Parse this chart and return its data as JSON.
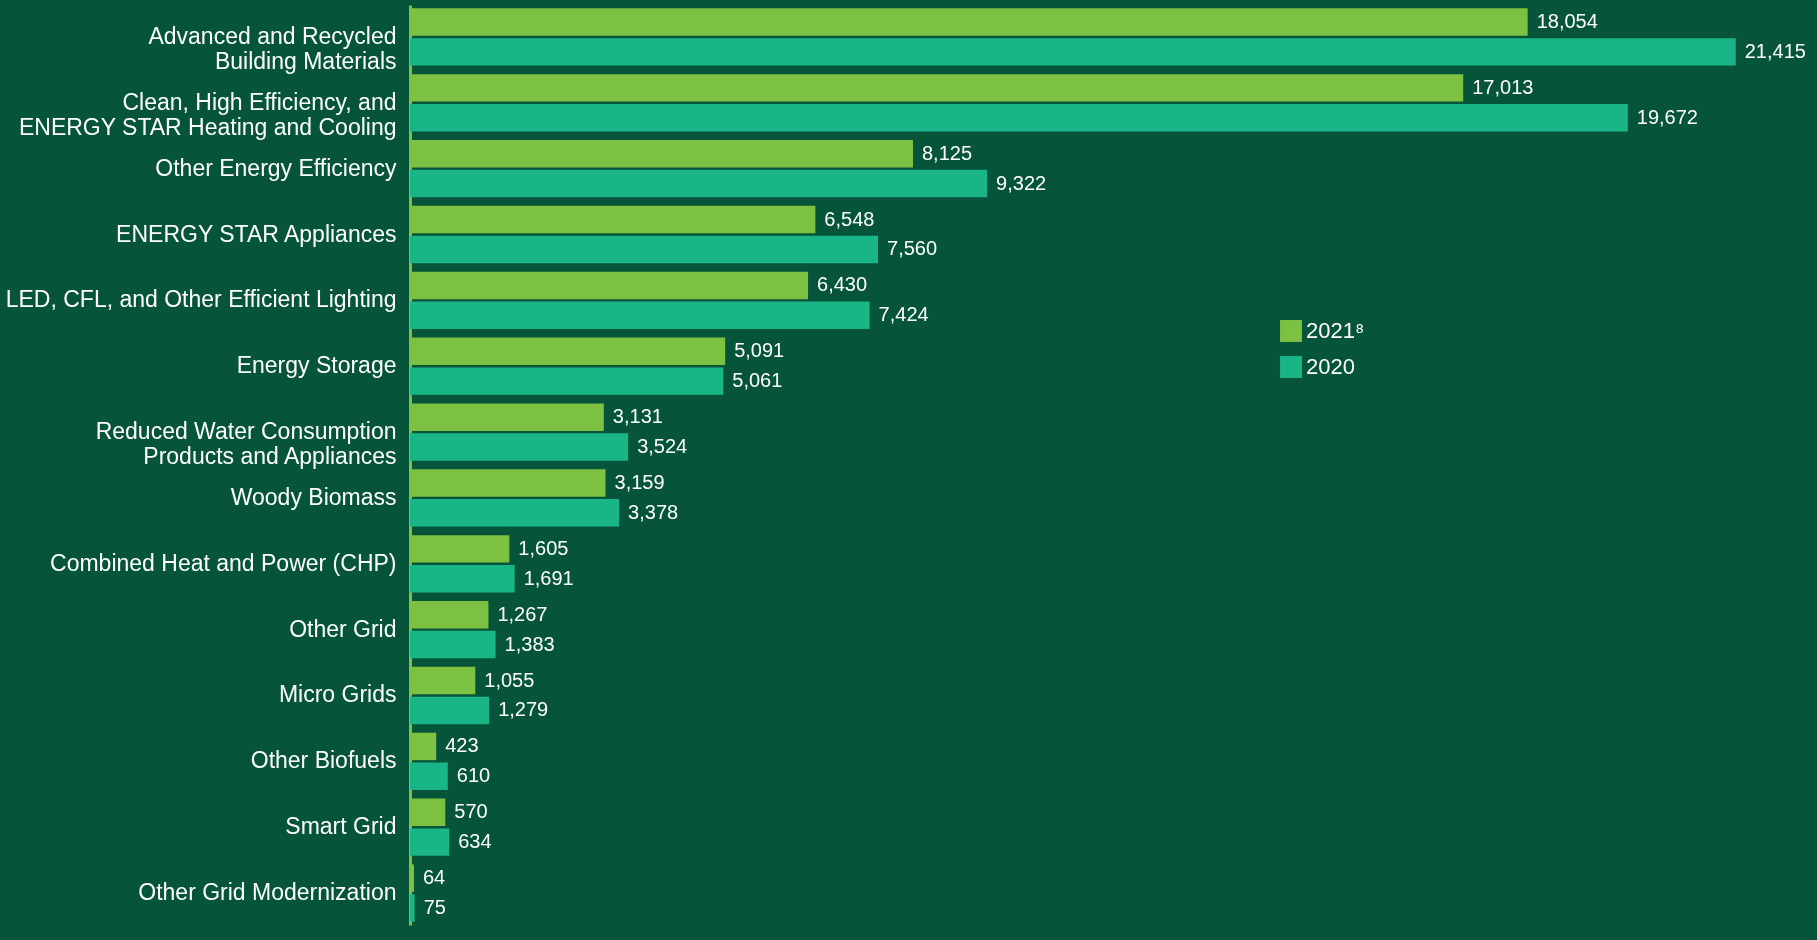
{
  "chart_data": {
    "type": "bar",
    "orientation": "horizontal",
    "categories": [
      "Advanced and Recycled Building Materials",
      "Clean, High Efficiency, and ENERGY STAR Heating and Cooling",
      "Other Energy Efficiency",
      "ENERGY STAR Appliances",
      "LED, CFL, and Other Efficient Lighting",
      "Energy Storage",
      "Reduced Water Consumption Products and Appliances",
      "Woody Biomass",
      "Combined Heat and Power (CHP)",
      "Other Grid",
      "Micro Grids",
      "Other Biofuels",
      "Smart Grid",
      "Other Grid Modernization"
    ],
    "series": [
      {
        "name": "2021⁸",
        "color": "#7dc142",
        "values": [
          18054,
          17013,
          8125,
          6548,
          6430,
          5091,
          3131,
          3159,
          1605,
          1267,
          1055,
          423,
          570,
          64
        ],
        "value_labels": [
          "18,054",
          "17,013",
          "8,125",
          "6,548",
          "6,430",
          "5,091",
          "3,131",
          "3,159",
          "1,605",
          "1,267",
          "1,055",
          "423",
          "570",
          "64"
        ]
      },
      {
        "name": "2020",
        "color": "#1ab587",
        "values": [
          21415,
          19672,
          9322,
          7560,
          7424,
          5061,
          3524,
          3378,
          1691,
          1383,
          1279,
          610,
          634,
          75
        ],
        "value_labels": [
          "21,415",
          "19,672",
          "9,322",
          "7,560",
          "7,424",
          "5,061",
          "3,524",
          "3,378",
          "1,691",
          "1,383",
          "1,279",
          "610",
          "634",
          "75"
        ]
      }
    ],
    "legend": "right",
    "tick_labels": "y",
    "grid": false
  }
}
